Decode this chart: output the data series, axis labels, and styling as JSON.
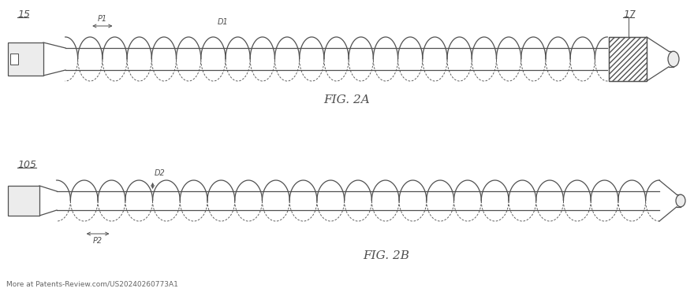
{
  "bg_color": "#ffffff",
  "line_color": "#505050",
  "fig_label_2a": "FIG. 2A",
  "fig_label_2b": "FIG. 2B",
  "label_15": "15",
  "label_17": "17",
  "label_105": "105",
  "label_P1": "P1",
  "label_D1": "D1",
  "label_P2": "P2",
  "label_D2": "D2",
  "watermark": "More at Patents-Review.com/US20240260773A1"
}
